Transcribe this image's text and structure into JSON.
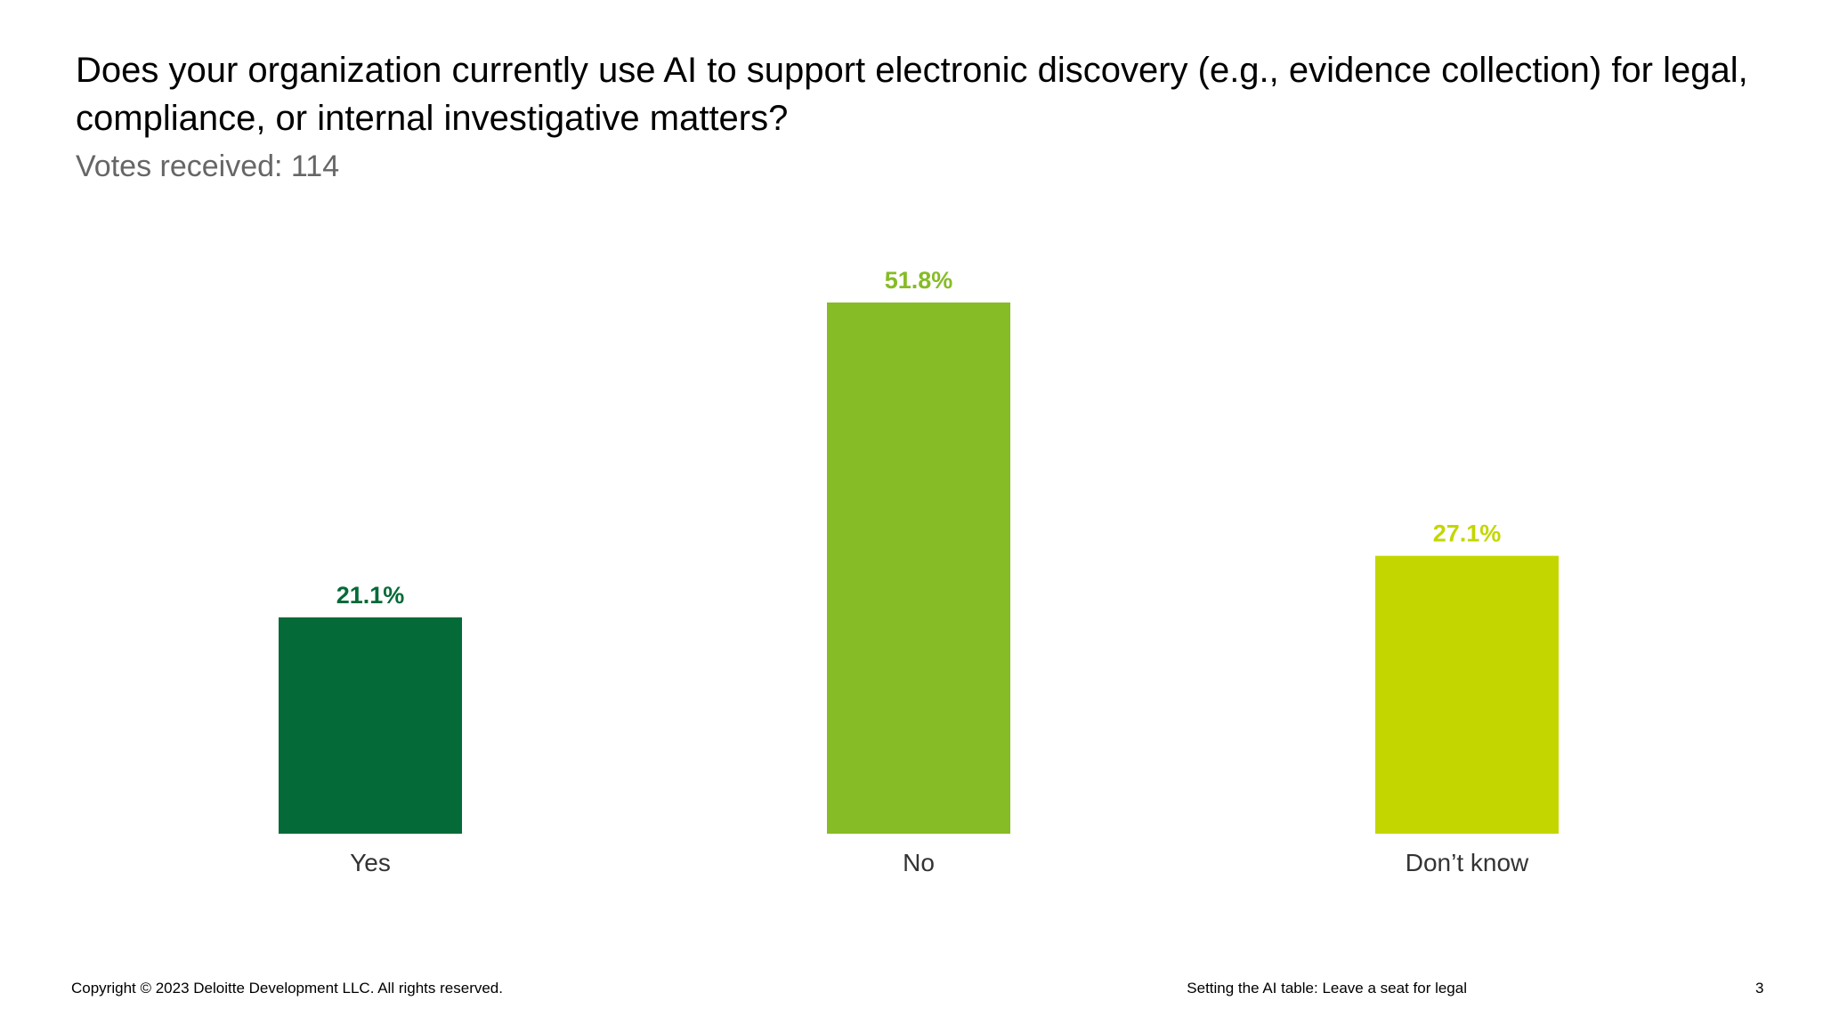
{
  "slide": {
    "title": "Does your organization currently use AI to support electronic discovery (e.g., evidence collection) for legal, compliance, or internal investigative matters?",
    "subtitle": "Votes received: 114"
  },
  "footer": {
    "copyright": "Copyright © 2023 Deloitte Development LLC. All rights reserved.",
    "presentation_title": "Setting the AI table: Leave a seat for legal",
    "page_number": "3"
  },
  "chart_data": {
    "type": "bar",
    "categories": [
      "Yes",
      "No",
      "Don’t know"
    ],
    "values": [
      21.1,
      51.8,
      27.1
    ],
    "value_labels": [
      "21.1%",
      "51.8%",
      "27.1%"
    ],
    "colors": [
      "#046a38",
      "#86bc25",
      "#c4d600"
    ],
    "ylim": [
      0,
      51.8
    ],
    "grid": false,
    "legend": "none"
  }
}
